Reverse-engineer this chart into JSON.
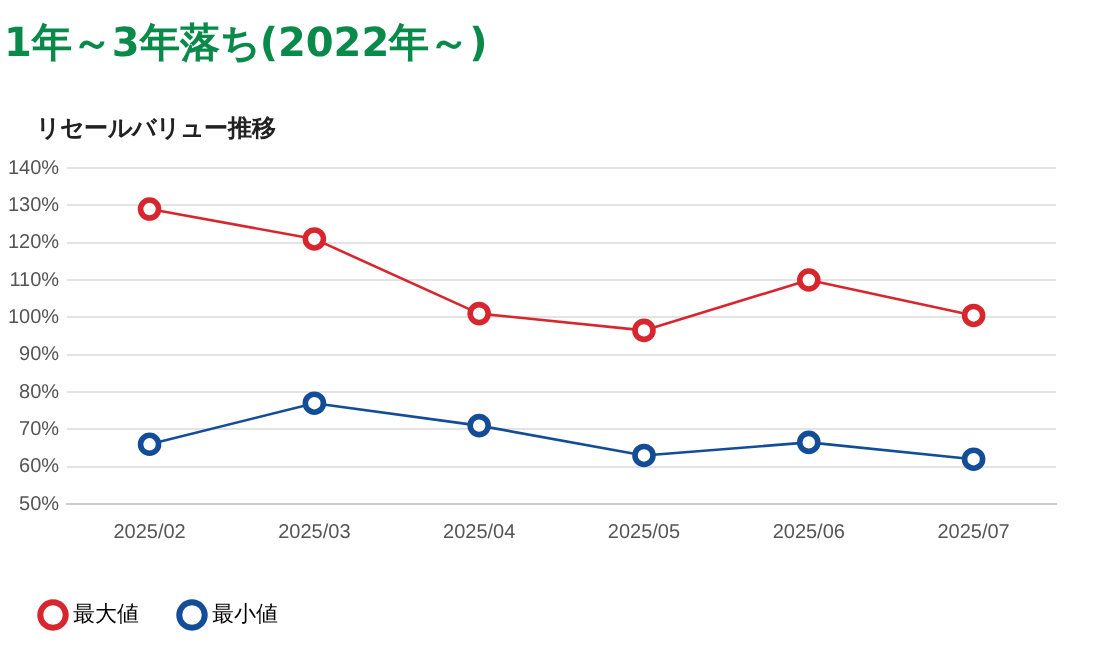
{
  "chart_data": {
    "type": "line",
    "title": "1年～3年落ち(2022年～)",
    "subtitle": "リセールバリュー推移",
    "categories": [
      "2025/02",
      "2025/03",
      "2025/04",
      "2025/05",
      "2025/06",
      "2025/07"
    ],
    "series": [
      {
        "name": "最大値",
        "color": "#d7262e",
        "values": [
          129,
          121,
          101,
          96.5,
          110,
          100.5
        ]
      },
      {
        "name": "最小値",
        "color": "#144d97",
        "values": [
          66,
          77,
          71,
          63,
          66.5,
          62
        ]
      }
    ],
    "ylim": [
      50,
      140
    ],
    "yticks": [
      {
        "value": 50,
        "label": "50%"
      },
      {
        "value": 60,
        "label": "60%"
      },
      {
        "value": 70,
        "label": "70%"
      },
      {
        "value": 80,
        "label": "80%"
      },
      {
        "value": 90,
        "label": "90%"
      },
      {
        "value": 100,
        "label": "100%"
      },
      {
        "value": 110,
        "label": "110%"
      },
      {
        "value": 120,
        "label": "120%"
      },
      {
        "value": 130,
        "label": "130%"
      },
      {
        "value": 140,
        "label": "140%"
      }
    ],
    "grid": "y",
    "legend": "bottom left",
    "marker": "circle",
    "line_style": "solid"
  }
}
